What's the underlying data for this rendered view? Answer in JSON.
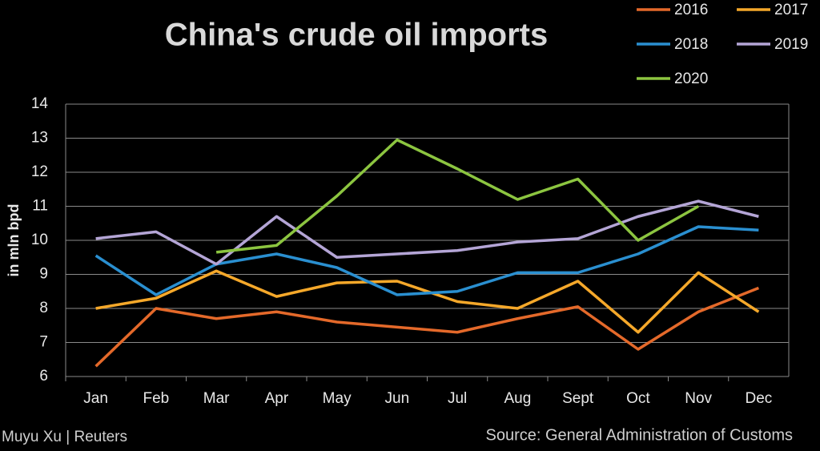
{
  "chart_data": {
    "type": "line",
    "title": "China's crude oil imports",
    "y_label": "in mln bpd",
    "credit": "Muyu Xu | Reuters",
    "source": "Source: General Administration of Customs",
    "categories": [
      "Jan",
      "Feb",
      "Mar",
      "Apr",
      "May",
      "Jun",
      "Jul",
      "Aug",
      "Sept",
      "Oct",
      "Nov",
      "Dec"
    ],
    "series": [
      {
        "name": "2016",
        "color": "#e4692a",
        "values": [
          6.3,
          8.0,
          7.7,
          7.9,
          7.6,
          7.45,
          7.3,
          7.7,
          8.05,
          6.8,
          7.9,
          8.6
        ]
      },
      {
        "name": "2017",
        "color": "#f5a82a",
        "values": [
          8.0,
          8.3,
          9.1,
          8.35,
          8.75,
          8.8,
          8.2,
          8.0,
          8.8,
          7.3,
          9.05,
          7.9
        ]
      },
      {
        "name": "2018",
        "color": "#2a8fd0",
        "values": [
          9.55,
          8.4,
          9.3,
          9.6,
          9.2,
          8.4,
          8.5,
          9.05,
          9.05,
          9.6,
          10.4,
          10.3
        ]
      },
      {
        "name": "2019",
        "color": "#b4a5d6",
        "values": [
          10.05,
          10.25,
          9.3,
          10.7,
          9.5,
          9.6,
          9.7,
          9.95,
          10.05,
          10.7,
          11.15,
          10.7
        ]
      },
      {
        "name": "2020",
        "color": "#8cc540",
        "values": [
          null,
          null,
          9.65,
          9.85,
          11.3,
          12.95,
          12.1,
          11.2,
          11.8,
          10.0,
          11.0,
          null
        ]
      }
    ],
    "ylim": [
      6,
      14
    ],
    "yticks": [
      6,
      7,
      8,
      9,
      10,
      11,
      12,
      13,
      14
    ],
    "grid": true,
    "legend": "top-right"
  }
}
